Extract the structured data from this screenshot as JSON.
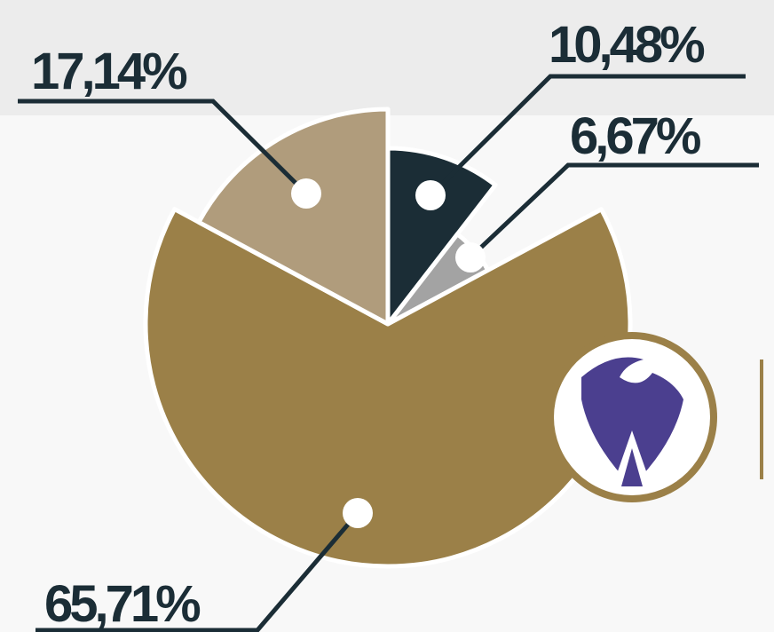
{
  "chart_data": {
    "type": "pie",
    "categories": [
      null,
      null,
      null,
      null
    ],
    "values": [
      10.48,
      6.67,
      65.71,
      17.14
    ],
    "value_labels": [
      "10,48%",
      "6,67%",
      "65,71%",
      "17,14%"
    ],
    "colors": [
      "#1b2d36",
      "#a3a3a3",
      "#9b8048",
      "#b09c7c"
    ]
  }
}
